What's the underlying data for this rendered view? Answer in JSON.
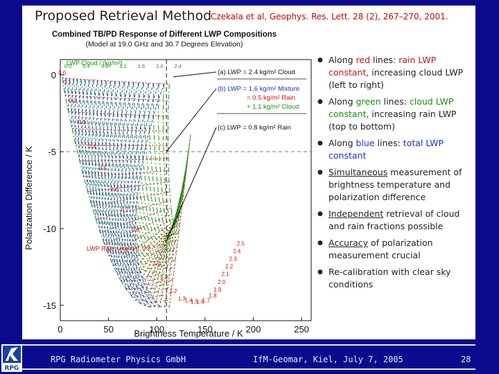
{
  "slide": {
    "title": "Proposed Retrieval Method",
    "reference": "Czekala et al, Geophys. Res. Lett. 28 (2), 267–270, 2001."
  },
  "chart_data": {
    "type": "line",
    "title": "Combined TB/PD Response of Different LWP Compositions",
    "subtitle": "(Model at 19.0 GHz and 30.7 Degrees Elevation)",
    "xlabel": "Brightness Temperature / K",
    "ylabel": "Polarization Difference / K",
    "xlim": [
      0,
      260
    ],
    "ylim": [
      -16,
      1
    ],
    "xticks": [
      "0",
      "50",
      "100",
      "150",
      "200",
      "250"
    ],
    "yticks": [
      "0",
      "-5",
      "-10",
      "-15"
    ],
    "cloud_label": "LWP Cloud / (kg/m²)",
    "rain_label": "LWP Rain / (kg/m²)",
    "cloud_lwp_labels": [
      "0.0",
      "0.4",
      "0.8",
      "1.2",
      "1.6",
      "2.0",
      "2.4"
    ],
    "rain_lwp_labels": [
      "0.0",
      "0.1",
      "0.2",
      "0.3",
      "0.4",
      "0.5",
      "0.6",
      "0.7",
      "0.8",
      "0.9",
      "1.0",
      "1.1",
      "1.2",
      "1.3",
      "1.4",
      "1.5",
      "1.6",
      "1.7",
      "1.8",
      "1.9",
      "2.0",
      "2.1",
      "2.2",
      "2.3",
      "2.4",
      "2.5"
    ],
    "rain_lwp_label_points": [
      {
        "x": 2,
        "y": 0
      },
      {
        "x": 7,
        "y": -0.6
      },
      {
        "x": 13,
        "y": -1.8
      },
      {
        "x": 22,
        "y": -3.2
      },
      {
        "x": 33,
        "y": -4.8
      },
      {
        "x": 44,
        "y": -6.2
      },
      {
        "x": 56,
        "y": -7.6
      },
      {
        "x": 67,
        "y": -8.9
      },
      {
        "x": 78,
        "y": -10.2
      },
      {
        "x": 89,
        "y": -11.4
      },
      {
        "x": 100,
        "y": -12.4
      },
      {
        "x": 108,
        "y": -13.4
      },
      {
        "x": 117,
        "y": -14.2
      },
      {
        "x": 126,
        "y": -14.7
      },
      {
        "x": 133,
        "y": -14.8
      },
      {
        "x": 139,
        "y": -14.9
      },
      {
        "x": 145,
        "y": -14.9
      },
      {
        "x": 151,
        "y": -14.8
      },
      {
        "x": 158,
        "y": -14.5
      },
      {
        "x": 163,
        "y": -14.1
      },
      {
        "x": 167,
        "y": -13.6
      },
      {
        "x": 171,
        "y": -13.1
      },
      {
        "x": 175,
        "y": -12.6
      },
      {
        "x": 179,
        "y": -12.1
      },
      {
        "x": 183,
        "y": -11.6
      },
      {
        "x": 187,
        "y": -11.1
      }
    ],
    "annotations": [
      "(a) LWP = 2.4 kg/m² Cloud",
      "(b) LWP = 1.6 kg/m² Mixture",
      "= 0.5 kg/m² Rain",
      "+ 1.1 kg/m² Cloud",
      "(c) LWP = 0.8 kg/m² Rain"
    ],
    "reference_lines": {
      "x": 110,
      "y": -5
    }
  },
  "bullets": [
    [
      {
        "t": "Along "
      },
      {
        "t": "red",
        "c": "red"
      },
      {
        "t": " lines: "
      },
      {
        "t": "rain LWP constant",
        "c": "red"
      },
      {
        "t": ", increasing cloud LWP (left to right)"
      }
    ],
    [
      {
        "t": "Along "
      },
      {
        "t": "green",
        "c": "green"
      },
      {
        "t": " lines: "
      },
      {
        "t": "cloud LWP constant",
        "c": "green"
      },
      {
        "t": ", increasing rain LWP (top to bottom)"
      }
    ],
    [
      {
        "t": "Along "
      },
      {
        "t": "blue",
        "c": "blue"
      },
      {
        "t": " lines: "
      },
      {
        "t": "total LWP constant",
        "c": "blue"
      }
    ],
    [
      {
        "t": "Simultaneous",
        "u": true
      },
      {
        "t": " measurement of brightness temperature and polarization difference"
      }
    ],
    [
      {
        "t": "Independent",
        "u": true
      },
      {
        "t": " retrieval of cloud and rain fractions possible"
      }
    ],
    [
      {
        "t": "Accuracy",
        "u": true
      },
      {
        "t": " of polarization measurement crucial"
      }
    ],
    [
      {
        "t": "Re-calibration with clear sky conditions"
      }
    ]
  ],
  "footer": {
    "org": "RPG Radiometer Physics GmbH",
    "event": "IfM-Geomar, Kiel, July 7, 2005",
    "page": "28"
  },
  "logo_text": "RPG",
  "colors": {
    "background": "#0a0a8c",
    "red": "#d01010",
    "green": "#119011",
    "blue": "#1a2fd8"
  }
}
